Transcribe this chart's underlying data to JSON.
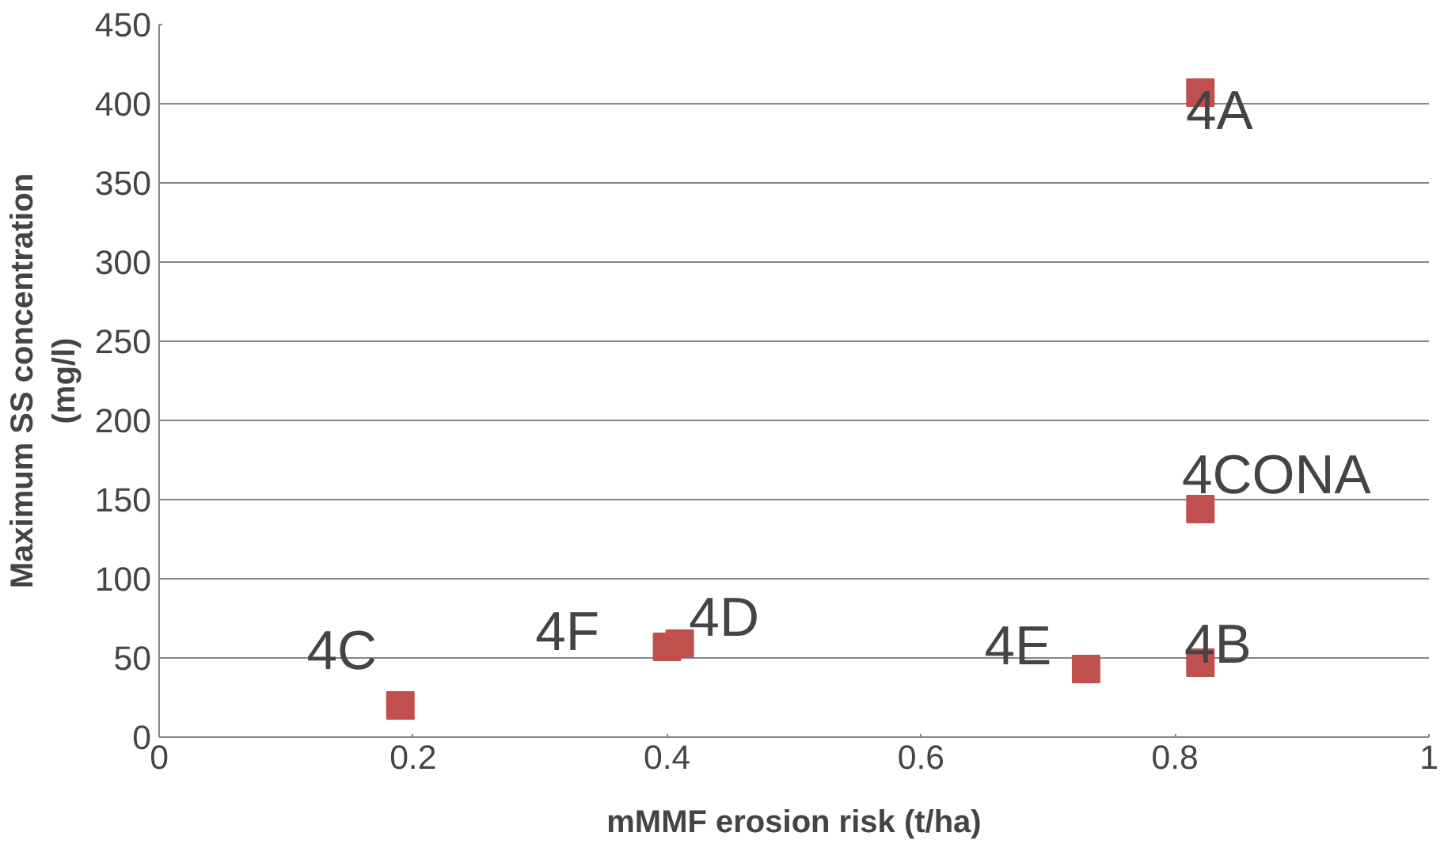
{
  "chart_data": {
    "type": "scatter",
    "xlabel": "mMMF erosion risk (t/ha)",
    "ylabel": "Maximum SS concentration\n(mg/l)",
    "x": [
      0.82,
      0.82,
      0.82,
      0.73,
      0.19,
      0.4,
      0.41
    ],
    "series": [
      {
        "color": "#c0504d",
        "values": [
          407,
          144,
          47,
          43,
          20,
          57,
          59
        ]
      }
    ],
    "marker": "square",
    "grid": "y",
    "xlim": [
      0,
      1
    ],
    "xticks": [
      0,
      0.2,
      0.4,
      0.6,
      0.8,
      1
    ],
    "ylim": [
      0,
      450
    ],
    "yticks": [
      0,
      50,
      100,
      150,
      200,
      250,
      300,
      350,
      400,
      450
    ],
    "annotations": [
      {
        "text": "4A",
        "x": 0.82,
        "y": 407
      },
      {
        "text": "4CONA",
        "x": 0.82,
        "y": 144
      },
      {
        "text": "4B",
        "x": 0.82,
        "y": 47
      },
      {
        "text": "4E",
        "x": 0.73,
        "y": 43
      },
      {
        "text": "4C",
        "x": 0.19,
        "y": 20
      },
      {
        "text": "4F",
        "x": 0.4,
        "y": 57
      },
      {
        "text": "4D",
        "x": 0.41,
        "y": 59
      }
    ]
  }
}
